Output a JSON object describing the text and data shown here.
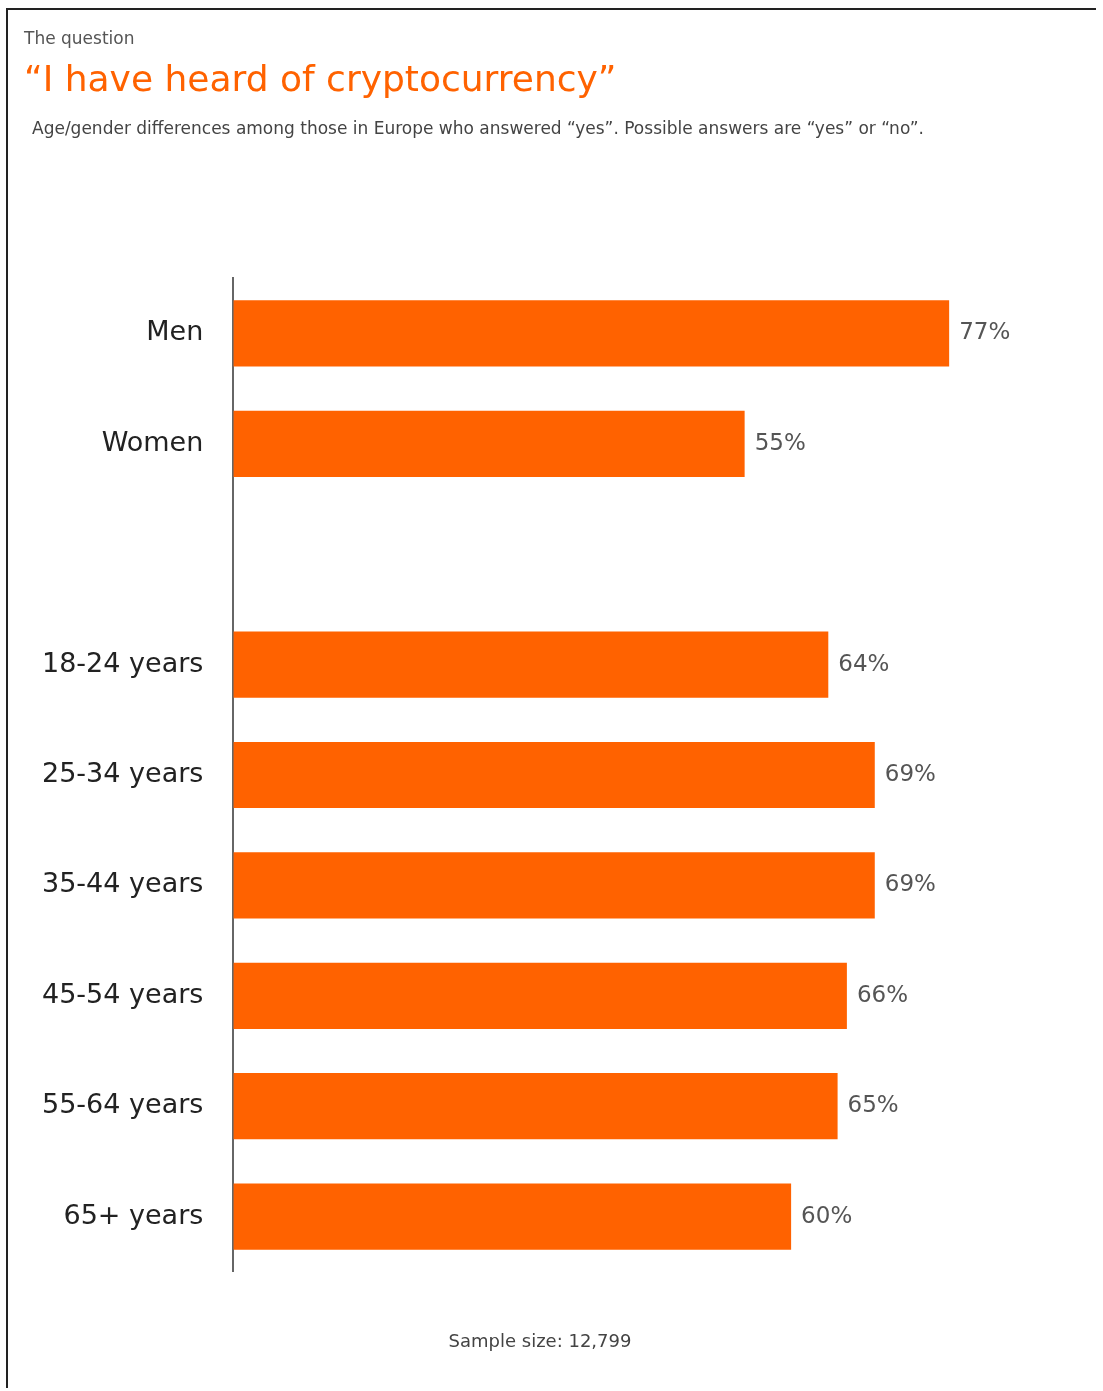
{
  "chart_data": {
    "type": "bar",
    "orientation": "horizontal",
    "title": "“I have heard of cryptocurrency”",
    "subtitle": "Age/gender differences among those in Europe who answered “yes”. Possible answers are “yes” or “no”.",
    "annotations": [
      "The question",
      "Sample size: 12,799"
    ],
    "categories": [
      "Men",
      "Women",
      null,
      "18-24 years",
      "25-34 years",
      "35-44 years",
      "45-54 years",
      "55-64 years",
      "65+ years"
    ],
    "values": [
      77,
      55,
      null,
      64,
      69,
      69,
      66,
      65,
      60
    ],
    "color": "#ff6200",
    "data_labels": true,
    "value_labels": [
      "77%",
      "55%",
      null,
      "64%",
      "69%",
      "69%",
      "66%",
      "65%",
      "60%"
    ],
    "legend": false,
    "tick_labels": "y"
  }
}
